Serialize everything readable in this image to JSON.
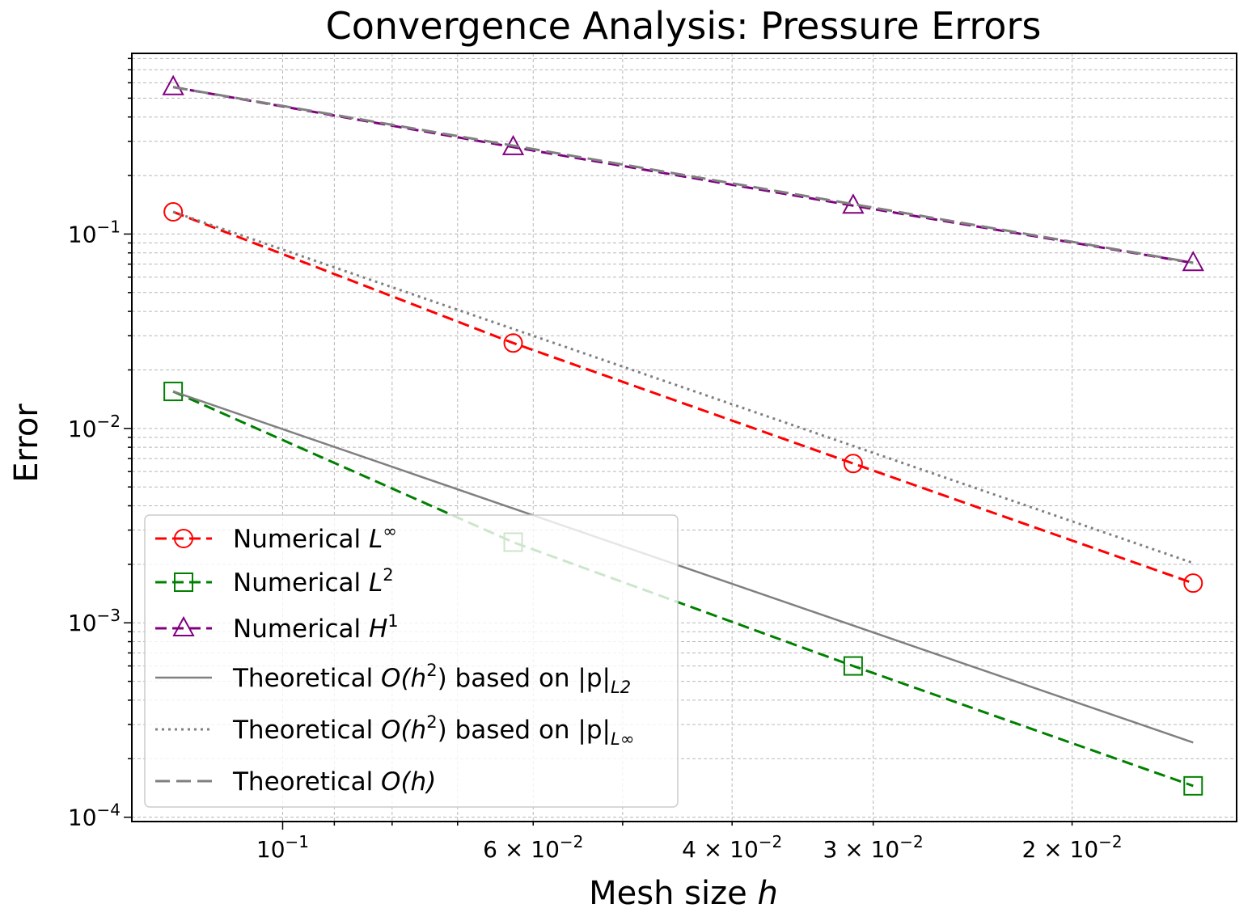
{
  "chart_data": {
    "type": "line",
    "title": "Convergence Analysis: Pressure Errors",
    "xlabel": "Mesh size h",
    "ylabel": "Error",
    "xscale": "log",
    "yscale": "log",
    "x_inverted": true,
    "xlim": [
      0.136,
      0.0143
    ],
    "ylim": [
      9.5e-05,
      0.85
    ],
    "grid": true,
    "legend_position": "lower-left",
    "x_ticks": [
      {
        "value": 0.1,
        "base": "10",
        "exp": "−1"
      },
      {
        "value": 0.06,
        "base": "6 × 10",
        "exp": "−2"
      },
      {
        "value": 0.04,
        "base": "4 × 10",
        "exp": "−2"
      },
      {
        "value": 0.03,
        "base": "3 × 10",
        "exp": "−2"
      },
      {
        "value": 0.02,
        "base": "2 × 10",
        "exp": "−2"
      }
    ],
    "y_ticks": [
      {
        "value": 0.1,
        "base": "10",
        "exp": "−1"
      },
      {
        "value": 0.01,
        "base": "10",
        "exp": "−2"
      },
      {
        "value": 0.001,
        "base": "10",
        "exp": "−3"
      },
      {
        "value": 0.0001,
        "base": "10",
        "exp": "−4"
      }
    ],
    "x": [
      0.125,
      0.0625,
      0.03125,
      0.015625
    ],
    "series": [
      {
        "name": "Numerical L∞",
        "legend_main": "Numerical L",
        "legend_sup": "∞",
        "legend_sub": "",
        "legend_after": "",
        "values": [
          0.13,
          0.0275,
          0.0066,
          0.0016
        ],
        "color": "#ff0000",
        "line": "dashed",
        "marker": "circle"
      },
      {
        "name": "Numerical L2",
        "legend_main": "Numerical L",
        "legend_sup": "2",
        "legend_sub": "",
        "legend_after": "",
        "values": [
          0.0155,
          0.0026,
          0.0006,
          0.000145
        ],
        "color": "#008000",
        "line": "dashed",
        "marker": "square"
      },
      {
        "name": "Numerical H1",
        "legend_main": "Numerical H",
        "legend_sup": "1",
        "legend_sub": "",
        "legend_after": "",
        "values": [
          0.57,
          0.28,
          0.14,
          0.071
        ],
        "color": "#800080",
        "line": "dashed",
        "marker": "triangle"
      },
      {
        "name": "Theoretical O(h2) based on |p|L2",
        "legend_main": "Theoretical O(h",
        "legend_sup": "2",
        "legend_after": ") based on |p|",
        "legend_sub": "L2",
        "values": [
          0.0155,
          0.003875,
          0.00096875,
          0.00024219
        ],
        "color": "#808080",
        "line": "solid",
        "marker": "none"
      },
      {
        "name": "Theoretical O(h2) based on |p|L∞",
        "legend_main": "Theoretical O(h",
        "legend_sup": "2",
        "legend_after": ") based on |p|",
        "legend_sub": "L∞",
        "values": [
          0.13,
          0.0325,
          0.008125,
          0.00203125
        ],
        "color": "#808080",
        "line": "dotted",
        "marker": "none"
      },
      {
        "name": "Theoretical O(h)",
        "legend_main": "Theoretical O(h)",
        "legend_sup": "",
        "legend_sub": "",
        "legend_after": "",
        "values": [
          0.57,
          0.285,
          0.1425,
          0.07125
        ],
        "color": "#808080",
        "line": "dashed-long",
        "marker": "none"
      }
    ]
  }
}
